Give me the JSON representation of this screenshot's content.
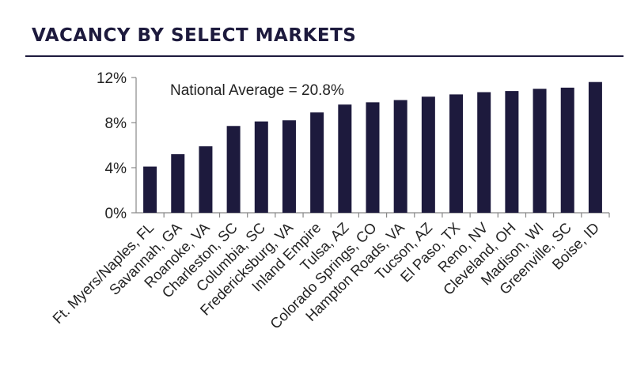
{
  "header": {
    "title": "VACANCY BY SELECT MARKETS"
  },
  "colors": {
    "bar": "#1d1a3d",
    "title": "#1d1a3d",
    "axis": "#888888"
  },
  "chart_data": {
    "type": "bar",
    "title": "",
    "xlabel": "",
    "ylabel": "",
    "annotation": "National Average = 20.8%",
    "ylim": [
      0,
      12
    ],
    "yticks": [
      0,
      4,
      8,
      12
    ],
    "ytick_labels": [
      "0%",
      "4%",
      "8%",
      "12%"
    ],
    "grid": false,
    "categories": [
      "Ft. Myers/Naples, FL",
      "Savannah, GA",
      "Roanoke, VA",
      "Charleston, SC",
      "Columbia, SC",
      "Fredericksburg, VA",
      "Inland Empire",
      "Tulsa, AZ",
      "Colorado Springs, CO",
      "Hampton Roads, VA",
      "Tucson, AZ",
      "El Paso, TX",
      "Reno, NV",
      "Cleveland, OH",
      "Madison, WI",
      "Greenville, SC",
      "Boise, ID"
    ],
    "values": [
      4.1,
      5.2,
      5.9,
      7.7,
      8.1,
      8.2,
      8.9,
      9.6,
      9.8,
      10.0,
      10.3,
      10.5,
      10.7,
      10.8,
      11.0,
      11.1,
      11.6
    ]
  }
}
